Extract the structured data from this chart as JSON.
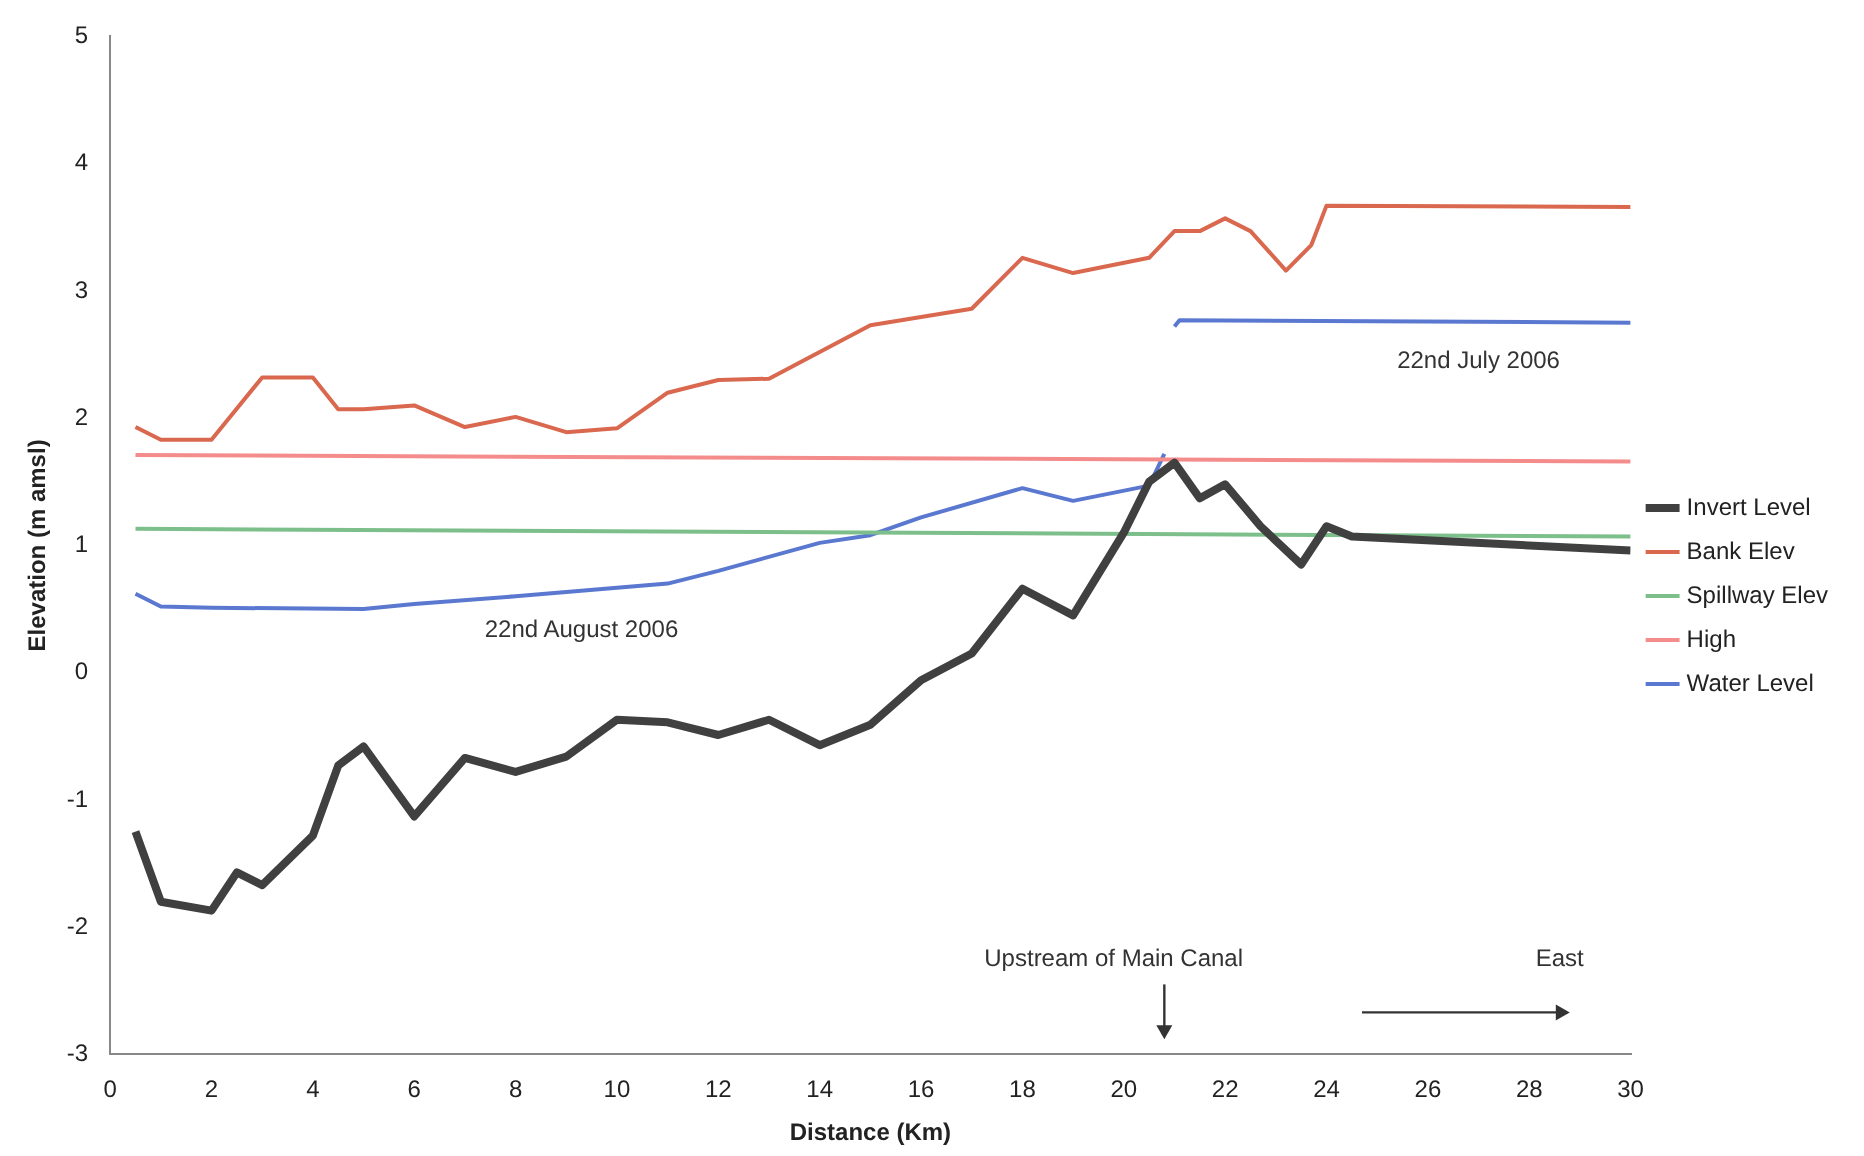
{
  "chart_data": {
    "type": "line",
    "xlabel": "Distance (Km)",
    "ylabel": "Elevation (m amsl)",
    "xlim": [
      0,
      30
    ],
    "xticks": [
      0,
      2,
      4,
      6,
      8,
      10,
      12,
      14,
      16,
      18,
      20,
      22,
      24,
      26,
      28,
      30
    ],
    "ylim": [
      -3,
      5
    ],
    "yticks": [
      -3,
      -2,
      -1,
      0,
      1,
      2,
      3,
      4,
      5
    ],
    "grid": false,
    "legend": "right",
    "marker": "none",
    "line_style": "solid",
    "annotations": [
      "22nd August 2006",
      "22nd July 2006",
      "Upstream of Main Canal",
      "East"
    ],
    "series": [
      {
        "name": "Invert Level",
        "color": "#404040",
        "x": [
          0.5,
          1,
          2,
          2.5,
          3,
          4,
          4.5,
          5,
          6,
          7,
          8,
          9,
          10,
          11,
          12,
          13,
          14,
          15,
          16,
          17,
          18,
          19,
          20,
          20.5,
          21,
          21.5,
          22,
          22.7,
          23.5,
          24,
          24.5,
          30
        ],
        "values": [
          -1.25,
          -1.8,
          -1.87,
          -1.57,
          -1.67,
          -1.28,
          -0.73,
          -0.58,
          -1.13,
          -0.67,
          -0.78,
          -0.66,
          -0.37,
          -0.39,
          -0.49,
          -0.37,
          -0.57,
          -0.41,
          -0.06,
          0.15,
          0.66,
          0.45,
          1.1,
          1.5,
          1.65,
          1.37,
          1.48,
          1.15,
          0.85,
          1.15,
          1.07,
          0.96
        ]
      },
      {
        "name": "Bank Elev",
        "color": "#d9684f",
        "x": [
          0.5,
          1,
          2,
          3,
          4,
          4.5,
          5,
          6,
          7,
          8,
          9,
          10,
          11,
          12,
          13,
          15,
          17,
          18,
          19,
          20.5,
          21,
          21.5,
          22,
          22.5,
          23.2,
          23.7,
          24,
          30
        ],
        "values": [
          1.93,
          1.83,
          1.83,
          2.32,
          2.32,
          2.07,
          2.07,
          2.1,
          1.93,
          2.01,
          1.89,
          1.92,
          2.2,
          2.3,
          2.31,
          2.73,
          2.86,
          3.26,
          3.14,
          3.26,
          3.47,
          3.47,
          3.57,
          3.47,
          3.16,
          3.36,
          3.67,
          3.66
        ]
      },
      {
        "name": "Spillway Elev",
        "color": "#7cbf8a",
        "x": [
          0.5,
          30
        ],
        "values": [
          1.13,
          1.07
        ]
      },
      {
        "name": "High",
        "color": "#f58c8c",
        "x": [
          0.5,
          30
        ],
        "values": [
          1.71,
          1.66
        ]
      },
      {
        "name": "Water Level",
        "color": "#5a78d0",
        "x": [
          0.5,
          1,
          2,
          5,
          6,
          8,
          11,
          12,
          14,
          15,
          16,
          18,
          19,
          20.5,
          20.8,
          20.9,
          21,
          21.1,
          30
        ],
        "values": [
          0.62,
          0.52,
          0.51,
          0.5,
          0.54,
          0.6,
          0.7,
          0.8,
          1.02,
          1.08,
          1.22,
          1.45,
          1.35,
          1.47,
          1.72,
          null,
          2.72,
          2.77,
          2.75
        ]
      }
    ]
  }
}
